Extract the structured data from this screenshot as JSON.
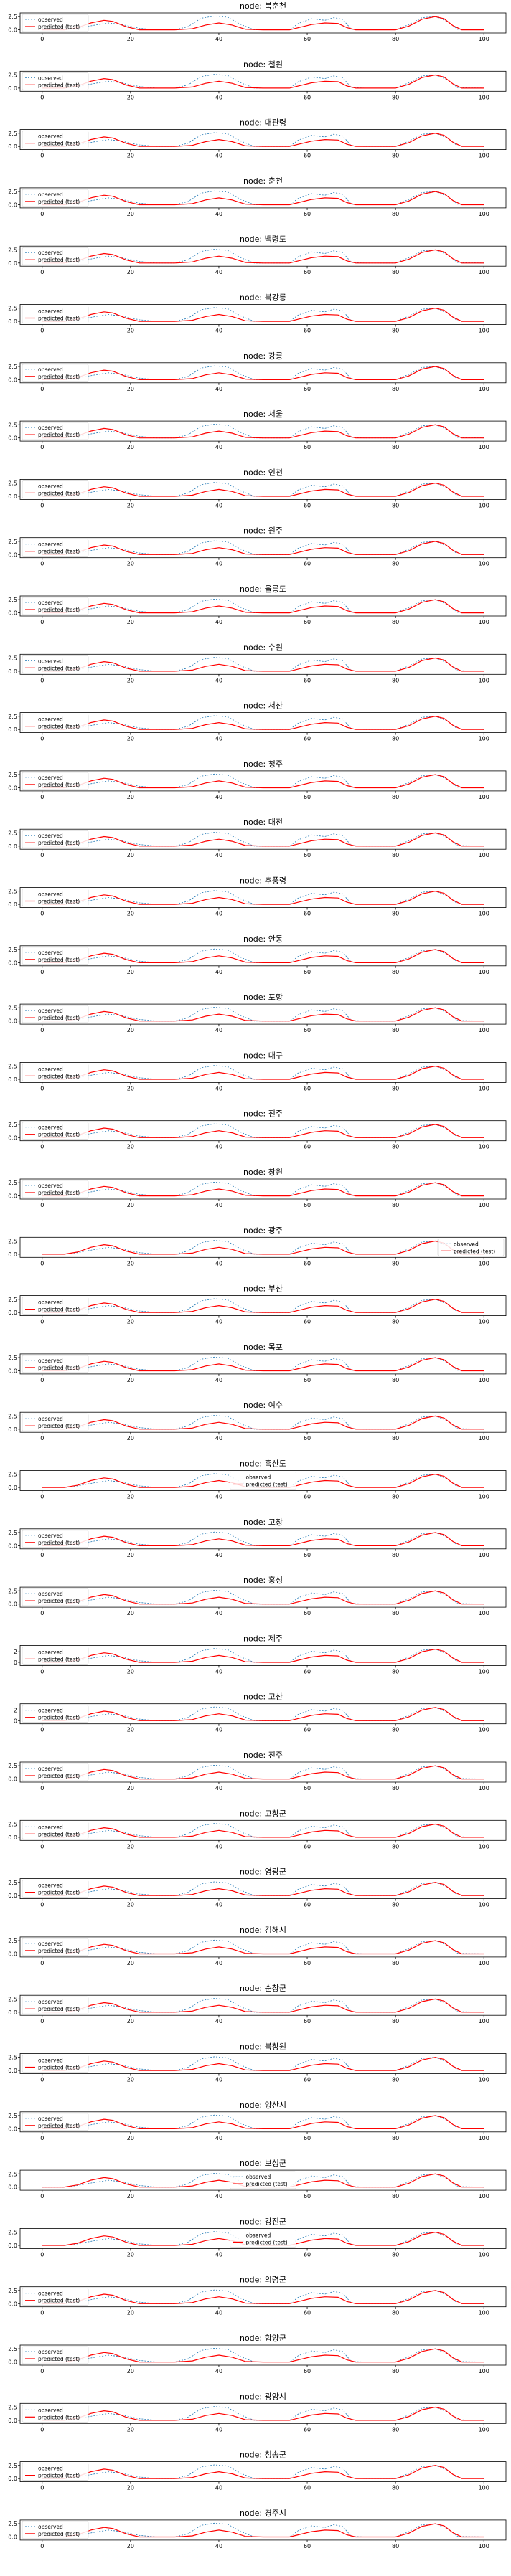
{
  "chart_data": {
    "type": "line",
    "title_prefix": "node: ",
    "x_ticks": [
      0,
      20,
      40,
      60,
      80,
      100
    ],
    "xlim": [
      -5,
      105
    ],
    "ylim": [
      -0.6,
      3.2
    ],
    "y_ticks": [
      0.0,
      2.5
    ],
    "legend": [
      "observed",
      "predicted (test)"
    ],
    "colors": {
      "observed": "#1f77b4",
      "predicted": "#ff0000",
      "frame": "#000000"
    },
    "series_shape": {
      "observed": [
        [
          0,
          0
        ],
        [
          5,
          0
        ],
        [
          8,
          0.3
        ],
        [
          12,
          0.9
        ],
        [
          15,
          1.3
        ],
        [
          18,
          1.0
        ],
        [
          22,
          0.3
        ],
        [
          26,
          0
        ],
        [
          30,
          0
        ],
        [
          33,
          0.6
        ],
        [
          36,
          2.2
        ],
        [
          39,
          2.6
        ],
        [
          42,
          2.4
        ],
        [
          45,
          1.0
        ],
        [
          48,
          0
        ],
        [
          52,
          0
        ],
        [
          56,
          0
        ],
        [
          58,
          1.2
        ],
        [
          61,
          2.1
        ],
        [
          64,
          1.8
        ],
        [
          66,
          2.3
        ],
        [
          68,
          2.0
        ],
        [
          70,
          0.1
        ],
        [
          73,
          0
        ],
        [
          78,
          0
        ],
        [
          80,
          0
        ],
        [
          83,
          1.0
        ],
        [
          86,
          2.3
        ],
        [
          89,
          2.5
        ],
        [
          92,
          1.5
        ],
        [
          94,
          0.1
        ],
        [
          100,
          0
        ]
      ],
      "predicted": [
        [
          0,
          0
        ],
        [
          5,
          0
        ],
        [
          8,
          0.4
        ],
        [
          11,
          1.3
        ],
        [
          14,
          1.8
        ],
        [
          16,
          1.6
        ],
        [
          19,
          0.6
        ],
        [
          22,
          0
        ],
        [
          30,
          0
        ],
        [
          34,
          0.2
        ],
        [
          37,
          0.9
        ],
        [
          40,
          1.3
        ],
        [
          43,
          0.9
        ],
        [
          46,
          0.1
        ],
        [
          50,
          0
        ],
        [
          56,
          0
        ],
        [
          58,
          0.4
        ],
        [
          61,
          1.0
        ],
        [
          64,
          1.3
        ],
        [
          67,
          1.2
        ],
        [
          69,
          0.4
        ],
        [
          71,
          0
        ],
        [
          78,
          0
        ],
        [
          80,
          0
        ],
        [
          83,
          0.7
        ],
        [
          86,
          2.0
        ],
        [
          89,
          2.5
        ],
        [
          91,
          2.1
        ],
        [
          93,
          0.8
        ],
        [
          95,
          0
        ],
        [
          100,
          0
        ]
      ]
    },
    "panels": [
      {
        "name": "북춘천"
      },
      {
        "name": "철원"
      },
      {
        "name": "대관령"
      },
      {
        "name": "춘천"
      },
      {
        "name": "백령도"
      },
      {
        "name": "북강릉"
      },
      {
        "name": "강릉"
      },
      {
        "name": "서울"
      },
      {
        "name": "인천"
      },
      {
        "name": "원주"
      },
      {
        "name": "울릉도"
      },
      {
        "name": "수원"
      },
      {
        "name": "서산"
      },
      {
        "name": "청주"
      },
      {
        "name": "대전"
      },
      {
        "name": "추풍령"
      },
      {
        "name": "안동"
      },
      {
        "name": "포항"
      },
      {
        "name": "대구"
      },
      {
        "name": "전주"
      },
      {
        "name": "창원"
      },
      {
        "name": "광주",
        "legend_pos": "right"
      },
      {
        "name": "부산"
      },
      {
        "name": "목포"
      },
      {
        "name": "여수"
      },
      {
        "name": "흑산도",
        "legend_pos": "center"
      },
      {
        "name": "고창"
      },
      {
        "name": "홍성"
      },
      {
        "name": "제주",
        "y_ticks": [
          0,
          2
        ]
      },
      {
        "name": "고산",
        "y_ticks": [
          0,
          2
        ]
      },
      {
        "name": "진주"
      },
      {
        "name": "고창군"
      },
      {
        "name": "영광군"
      },
      {
        "name": "김해시"
      },
      {
        "name": "순창군"
      },
      {
        "name": "북창원"
      },
      {
        "name": "양산시"
      },
      {
        "name": "보성군",
        "legend_pos": "center"
      },
      {
        "name": "강진군",
        "legend_pos": "center"
      },
      {
        "name": "의령군"
      },
      {
        "name": "함양군"
      },
      {
        "name": "광양시"
      },
      {
        "name": "청송군"
      },
      {
        "name": "경주시"
      }
    ]
  }
}
